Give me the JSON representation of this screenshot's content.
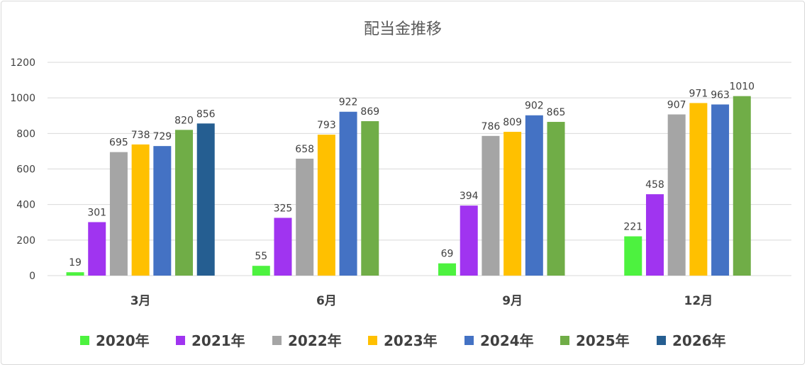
{
  "chart_data": {
    "type": "bar",
    "title": "配当金推移",
    "xlabel": "",
    "ylabel": "",
    "ylim": [
      0,
      1200
    ],
    "yticks": [
      0,
      200,
      400,
      600,
      800,
      1000,
      1200
    ],
    "grid": true,
    "legend_position": "bottom",
    "categories": [
      "3月",
      "6月",
      "9月",
      "12月"
    ],
    "series": [
      {
        "name": "2020年",
        "color": "#4DF23F",
        "values": [
          19,
          55,
          69,
          221
        ]
      },
      {
        "name": "2021年",
        "color": "#A034F0",
        "values": [
          301,
          325,
          394,
          458
        ]
      },
      {
        "name": "2022年",
        "color": "#A5A5A5",
        "values": [
          695,
          658,
          786,
          907
        ]
      },
      {
        "name": "2023年",
        "color": "#FFC000",
        "values": [
          738,
          793,
          809,
          971
        ]
      },
      {
        "name": "2024年",
        "color": "#4472C4",
        "values": [
          729,
          922,
          902,
          963
        ]
      },
      {
        "name": "2025年",
        "color": "#70AD47",
        "values": [
          820,
          869,
          865,
          1010
        ]
      },
      {
        "name": "2026年",
        "color": "#255E91",
        "values": [
          856,
          null,
          null,
          null
        ]
      }
    ]
  }
}
